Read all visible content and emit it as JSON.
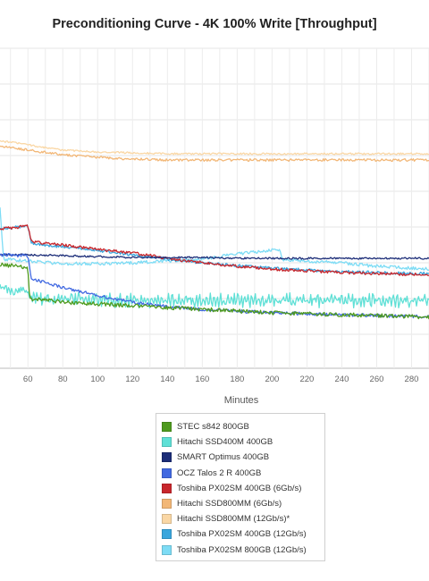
{
  "chart_data": {
    "type": "line",
    "title": "Preconditioning Curve - 4K 100% Write [Throughput]",
    "xlabel": "Minutes",
    "ylabel": "",
    "x_ticks": [
      60,
      80,
      100,
      120,
      140,
      160,
      180,
      200,
      220,
      240,
      260,
      280
    ],
    "x_visible_range": [
      44,
      290
    ],
    "grid": true,
    "legend_position": "bottom",
    "series": [
      {
        "name": "STEC s842 800GB",
        "color": "#4e9a1e",
        "points": [
          [
            44,
            296
          ],
          [
            55,
            298
          ],
          [
            60,
            300
          ],
          [
            61,
            334
          ],
          [
            70,
            336
          ],
          [
            80,
            338
          ],
          [
            100,
            340
          ],
          [
            120,
            342
          ],
          [
            140,
            344
          ],
          [
            160,
            346
          ],
          [
            180,
            348
          ],
          [
            200,
            350
          ],
          [
            220,
            351
          ],
          [
            240,
            352
          ],
          [
            260,
            353
          ],
          [
            280,
            354
          ],
          [
            290,
            355
          ]
        ]
      },
      {
        "name": "Hitachi SSD400M 400GB",
        "color": "#5fe0d6",
        "points": [
          [
            44,
            322
          ],
          [
            52,
            326
          ],
          [
            58,
            322
          ],
          [
            62,
            333
          ],
          [
            70,
            335
          ],
          [
            80,
            334
          ],
          [
            100,
            336
          ],
          [
            120,
            336
          ],
          [
            140,
            336
          ],
          [
            160,
            336
          ],
          [
            180,
            336
          ],
          [
            200,
            336
          ],
          [
            220,
            336
          ],
          [
            240,
            336
          ],
          [
            260,
            336
          ],
          [
            280,
            336
          ],
          [
            290,
            336
          ]
        ]
      },
      {
        "name": "SMART Optimus 400GB",
        "color": "#1c2d78",
        "points": [
          [
            44,
            285
          ],
          [
            60,
            285
          ],
          [
            80,
            286
          ],
          [
            100,
            287
          ],
          [
            120,
            288
          ],
          [
            140,
            288
          ],
          [
            160,
            288
          ],
          [
            180,
            289
          ],
          [
            200,
            289
          ],
          [
            220,
            289
          ],
          [
            240,
            289
          ],
          [
            260,
            289
          ],
          [
            280,
            289
          ],
          [
            290,
            289
          ]
        ]
      },
      {
        "name": "OCZ Talos 2 R 400GB",
        "color": "#4169e1",
        "points": [
          [
            44,
            285
          ],
          [
            60,
            286
          ],
          [
            62,
            312
          ],
          [
            70,
            316
          ],
          [
            80,
            322
          ],
          [
            90,
            326
          ],
          [
            100,
            331
          ],
          [
            120,
            338
          ],
          [
            140,
            343
          ],
          [
            160,
            346
          ],
          [
            180,
            348
          ],
          [
            200,
            350
          ],
          [
            220,
            351
          ],
          [
            240,
            352
          ],
          [
            260,
            353
          ],
          [
            280,
            354
          ],
          [
            290,
            354
          ]
        ]
      },
      {
        "name": "Toshiba PX02SM 400GB (6Gb/s)",
        "color": "#c8262c",
        "points": [
          [
            44,
            256
          ],
          [
            55,
            254
          ],
          [
            60,
            253
          ],
          [
            62,
            270
          ],
          [
            70,
            272
          ],
          [
            80,
            274
          ],
          [
            100,
            279
          ],
          [
            120,
            283
          ],
          [
            140,
            289
          ],
          [
            160,
            294
          ],
          [
            180,
            298
          ],
          [
            200,
            301
          ],
          [
            220,
            303
          ],
          [
            240,
            305
          ],
          [
            260,
            306
          ],
          [
            280,
            307
          ],
          [
            290,
            307
          ]
        ]
      },
      {
        "name": "Hitachi SSD800MM (6Gb/s)",
        "color": "#f2b777",
        "points": [
          [
            44,
            163
          ],
          [
            60,
            168
          ],
          [
            80,
            173
          ],
          [
            100,
            176
          ],
          [
            120,
            178
          ],
          [
            140,
            179
          ],
          [
            160,
            179
          ],
          [
            180,
            179
          ],
          [
            200,
            179
          ],
          [
            220,
            179
          ],
          [
            240,
            179
          ],
          [
            260,
            179
          ],
          [
            280,
            179
          ],
          [
            290,
            179
          ]
        ]
      },
      {
        "name": "Hitachi SSD800MM (12Gb/s)*",
        "color": "#fad7a5",
        "points": [
          [
            44,
            158
          ],
          [
            50,
            159
          ],
          [
            60,
            162
          ],
          [
            80,
            168
          ],
          [
            100,
            170
          ],
          [
            120,
            171
          ],
          [
            140,
            172
          ],
          [
            160,
            172
          ],
          [
            180,
            172
          ],
          [
            200,
            172
          ],
          [
            220,
            172
          ],
          [
            240,
            172
          ],
          [
            260,
            172
          ],
          [
            280,
            172
          ],
          [
            290,
            172
          ]
        ]
      },
      {
        "name": "Toshiba PX02SM 400GB (12Gb/s)",
        "color": "#3aa6dd",
        "points": [
          [
            44,
            256
          ],
          [
            55,
            254
          ],
          [
            60,
            253
          ],
          [
            62,
            272
          ],
          [
            70,
            274
          ],
          [
            80,
            276
          ],
          [
            100,
            280
          ],
          [
            120,
            285
          ],
          [
            140,
            290
          ],
          [
            160,
            294
          ],
          [
            180,
            297
          ],
          [
            200,
            300
          ],
          [
            220,
            302
          ],
          [
            240,
            304
          ],
          [
            260,
            305
          ],
          [
            280,
            306
          ],
          [
            290,
            306
          ]
        ]
      },
      {
        "name": "Toshiba PX02SM 800GB (12Gb/s)",
        "color": "#7ddcf5",
        "points": [
          [
            44,
            232
          ],
          [
            46,
            290
          ],
          [
            60,
            292
          ],
          [
            80,
            295
          ],
          [
            100,
            295
          ],
          [
            120,
            294
          ],
          [
            140,
            292
          ],
          [
            160,
            290
          ],
          [
            180,
            284
          ],
          [
            200,
            280
          ],
          [
            204,
            279
          ],
          [
            206,
            290
          ],
          [
            220,
            292
          ],
          [
            240,
            294
          ],
          [
            260,
            298
          ],
          [
            280,
            300
          ],
          [
            290,
            301
          ]
        ]
      }
    ]
  }
}
